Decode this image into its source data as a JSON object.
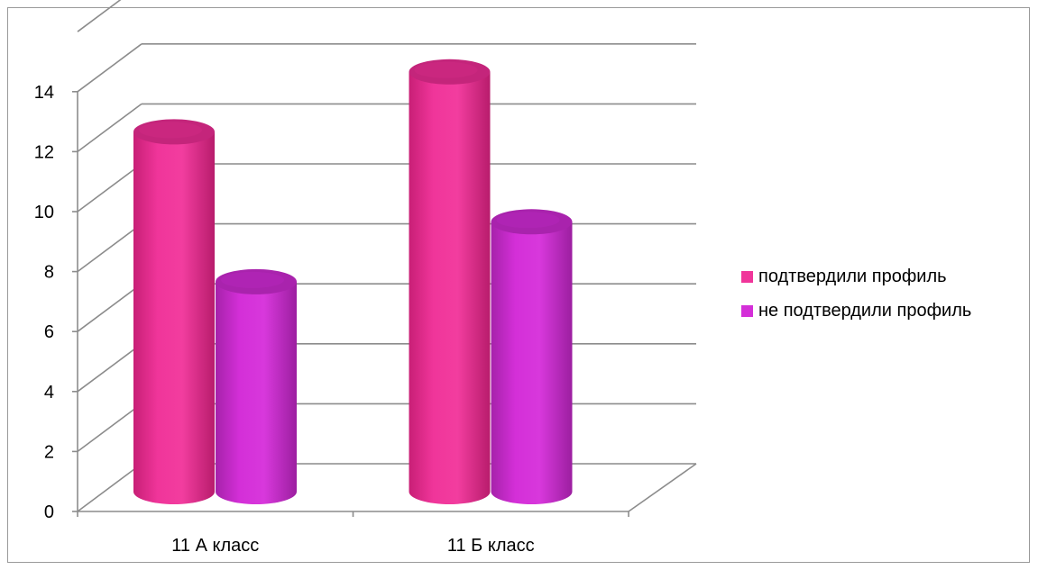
{
  "chart_data": {
    "type": "bar",
    "style": "3d-cylinder",
    "categories": [
      "11 А класс",
      "11 Б класс"
    ],
    "series": [
      {
        "name": "подтвердили профиль",
        "values": [
          12,
          14
        ],
        "color": "#f0359a"
      },
      {
        "name": "не подтвердили профиль",
        "values": [
          7,
          9
        ],
        "color": "#d42fd8"
      }
    ],
    "ylim": [
      0,
      14
    ],
    "yticks": [
      "0",
      "2",
      "4",
      "6",
      "8",
      "10",
      "12",
      "14"
    ],
    "grid": true,
    "legend_position": "right"
  }
}
